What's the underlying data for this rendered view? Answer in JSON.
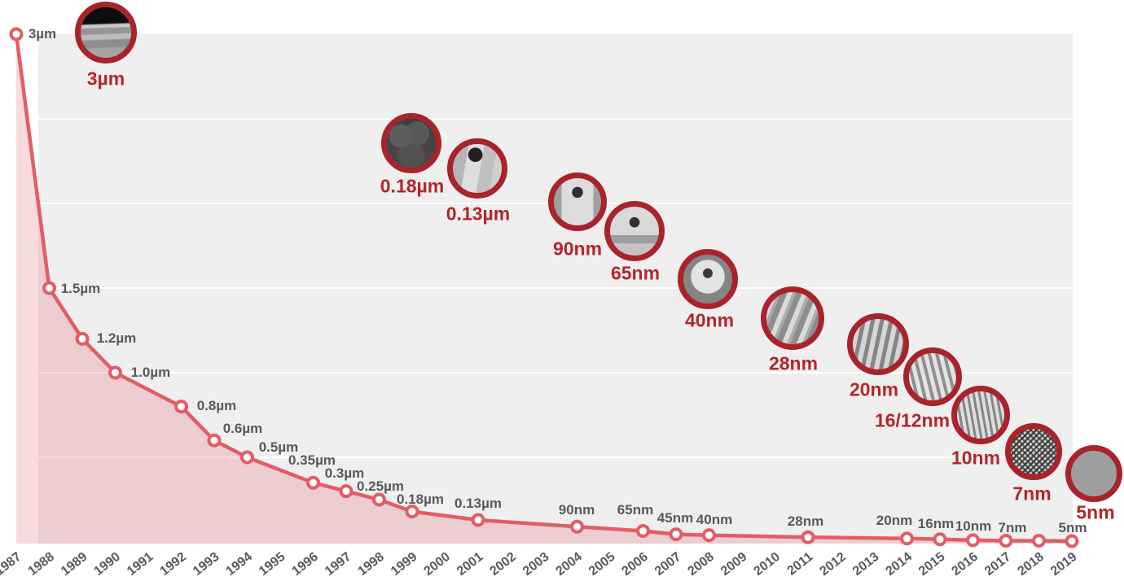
{
  "chart_data": {
    "type": "line",
    "x_axis": {
      "ticks": [
        "1987",
        "1988",
        "1989",
        "1990",
        "1991",
        "1992",
        "1993",
        "1994",
        "1995",
        "1996",
        "1997",
        "1998",
        "1999",
        "2000",
        "2001",
        "2002",
        "2003",
        "2004",
        "2005",
        "2006",
        "2007",
        "2008",
        "2009",
        "2010",
        "2011",
        "2012",
        "2013",
        "2014",
        "2015",
        "2016",
        "2017",
        "2018",
        "2019"
      ]
    },
    "y_axis": {
      "unit": "nm",
      "range": [
        0,
        3000
      ],
      "gridline_step": 500,
      "tick_labels_visible": false
    },
    "series": [
      {
        "name": "process-node-size",
        "points": [
          {
            "year": 1987,
            "value_nm": 3000,
            "label": "3µm"
          },
          {
            "year": 1988,
            "value_nm": 1500,
            "label": "1.5µm"
          },
          {
            "year": 1989,
            "value_nm": 1200,
            "label": "1.2µm"
          },
          {
            "year": 1990,
            "value_nm": 1000,
            "label": "1.0µm"
          },
          {
            "year": 1992,
            "value_nm": 800,
            "label": "0.8µm"
          },
          {
            "year": 1993,
            "value_nm": 600,
            "label": "0.6µm"
          },
          {
            "year": 1994,
            "value_nm": 500,
            "label": "0.5µm"
          },
          {
            "year": 1996,
            "value_nm": 350,
            "label": "0.35µm"
          },
          {
            "year": 1997,
            "value_nm": 300,
            "label": "0.3µm"
          },
          {
            "year": 1998,
            "value_nm": 250,
            "label": "0.25µm"
          },
          {
            "year": 1999,
            "value_nm": 180,
            "label": "0.18µm"
          },
          {
            "year": 2001,
            "value_nm": 130,
            "label": "0.13µm"
          },
          {
            "year": 2004,
            "value_nm": 90,
            "label": "90nm"
          },
          {
            "year": 2006,
            "value_nm": 65,
            "label": "65nm"
          },
          {
            "year": 2007,
            "value_nm": 45,
            "label": "45nm"
          },
          {
            "year": 2008,
            "value_nm": 40,
            "label": "40nm"
          },
          {
            "year": 2011,
            "value_nm": 28,
            "label": "28nm"
          },
          {
            "year": 2014,
            "value_nm": 20,
            "label": "20nm"
          },
          {
            "year": 2015,
            "value_nm": 16,
            "label": "16nm"
          },
          {
            "year": 2016,
            "value_nm": 10,
            "label": "10nm"
          },
          {
            "year": 2017,
            "value_nm": 7,
            "label": "7nm"
          },
          {
            "year": 2018,
            "value_nm": 7,
            "label": ""
          },
          {
            "year": 2019,
            "value_nm": 5,
            "label": "5nm"
          }
        ]
      }
    ],
    "milestone_images": [
      {
        "label": "3µm",
        "image": "sem-micrograph-3um"
      },
      {
        "label": "0.18µm",
        "image": "sem-micrograph-018um"
      },
      {
        "label": "0.13µm",
        "image": "sem-micrograph-013um"
      },
      {
        "label": "90nm",
        "image": "sem-micrograph-90nm"
      },
      {
        "label": "65nm",
        "image": "sem-micrograph-65nm"
      },
      {
        "label": "40nm",
        "image": "sem-micrograph-40nm"
      },
      {
        "label": "28nm",
        "image": "sem-micrograph-28nm"
      },
      {
        "label": "20nm",
        "image": "sem-micrograph-20nm"
      },
      {
        "label": "16/12nm",
        "image": "sem-micrograph-16-12nm"
      },
      {
        "label": "10nm",
        "image": "sem-micrograph-10nm"
      },
      {
        "label": "7nm",
        "image": "sem-micrograph-7nm"
      },
      {
        "label": "5nm",
        "image": "sem-micrograph-5nm"
      }
    ],
    "legend": null,
    "grid": "horizontal-white-lines"
  },
  "colors": {
    "line": "#e25d66",
    "area_fill": "rgba(224,92,102,0.22)",
    "plot_background": "#f0efef",
    "gridline": "#ffffff",
    "point_label": "#58595b",
    "axis_label": "#595a5c",
    "milestone_label": "#b5242b",
    "milestone_ring": "#a8232a"
  }
}
